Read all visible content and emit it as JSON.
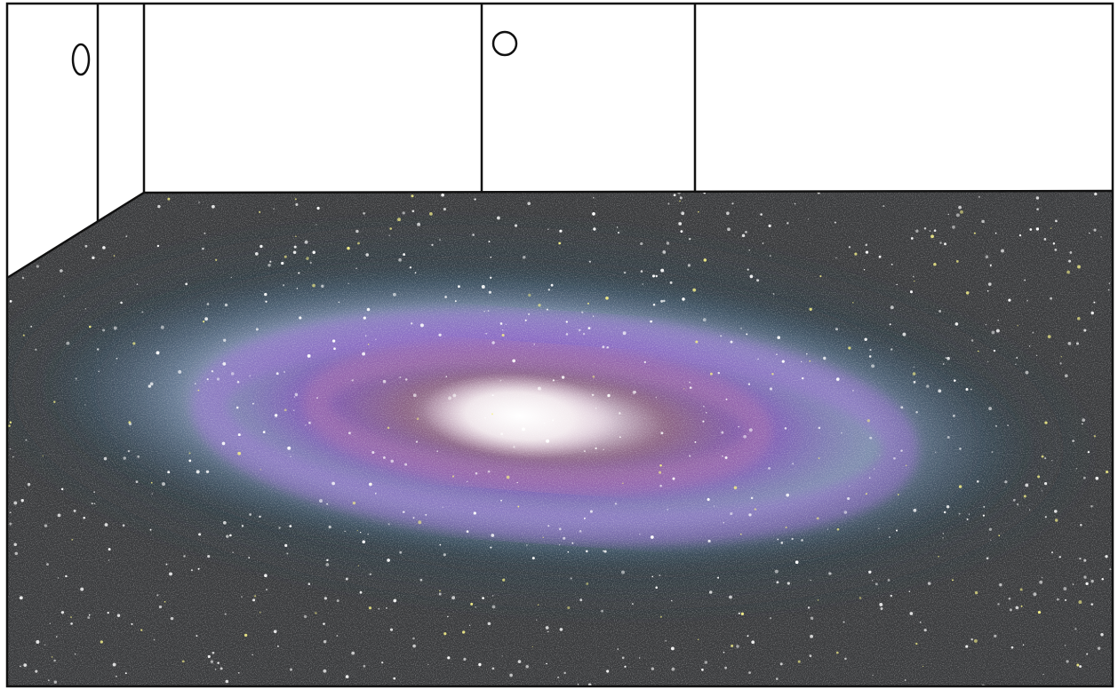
{
  "colors": {
    "wall": "#ffffff",
    "outline": "#111111",
    "floor_space": "#3a3b3d",
    "galaxy_halo": "#2a4a5c",
    "galaxy_outer_blue": "#9fb2d8",
    "galaxy_purple": "#8a5cc8",
    "galaxy_magenta": "#a96fa8",
    "galaxy_core": "#ffffff",
    "star_white": "#ffffff",
    "star_yellow": "#f5f08a"
  },
  "objects": {
    "doors": [
      "left-door",
      "center-door",
      "right-panel"
    ],
    "door_handles": [
      "oval-handle",
      "round-handle"
    ],
    "floor_content": "spiral-galaxy"
  }
}
